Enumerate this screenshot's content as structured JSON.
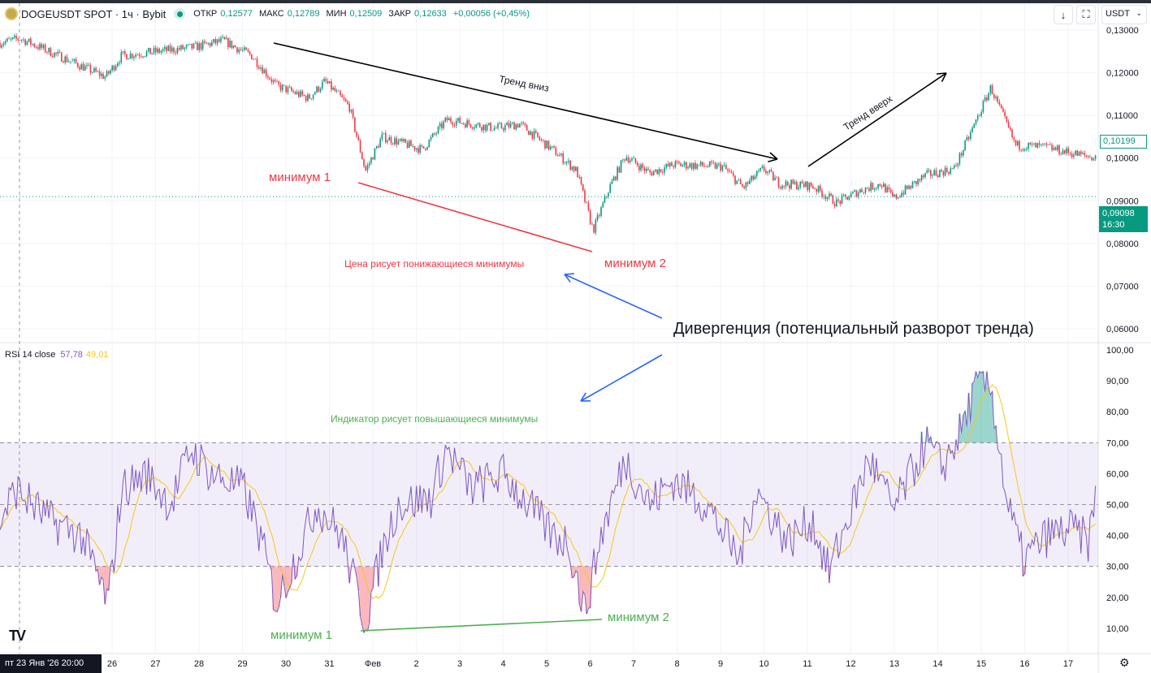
{
  "header": {
    "title": "DOGEUSDT SPOT · 1ч · Bybit",
    "open_label": "ОТКР",
    "open": "0,12577",
    "high_label": "МАКС",
    "high": "0,12789",
    "low_label": "МИН",
    "low": "0,12509",
    "close_label": "ЗАКР",
    "close": "0,12633",
    "change": "+0,00056 (+0,45%)",
    "currency": "USDT"
  },
  "rsi_legend": {
    "label": "RSI 14 close",
    "rsi": "57,78",
    "ma": "49,01"
  },
  "price_axis": [
    "0,13000",
    "0,12000",
    "0,11000",
    "0,10000",
    "0,09000",
    "0,08000",
    "0,07000",
    "0,06000"
  ],
  "rsi_axis": [
    "100,00",
    "90,00",
    "80,00",
    "70,00",
    "60,00",
    "50,00",
    "40,00",
    "30,00",
    "20,00",
    "10,00"
  ],
  "current_price": "0,10199",
  "last_price": "0,09098",
  "countdown": "16:30",
  "time_axis": {
    "cursor": "пт 23 Янв '26   20:00",
    "labels": [
      "26",
      "27",
      "28",
      "29",
      "30",
      "31",
      "Фев",
      "2",
      "3",
      "4",
      "5",
      "6",
      "7",
      "8",
      "9",
      "10",
      "11",
      "12",
      "13",
      "14",
      "15",
      "16",
      "17"
    ]
  },
  "annotations": {
    "trend_down": "Тренд вниз",
    "trend_up": "Тренд вверх",
    "min1_price": "минимум 1",
    "min2_price": "минимум 2",
    "price_note": "Цена рисует понижающиеся минимумы",
    "divergence": "Дивергенция (потенциальный разворот тренда)",
    "rsi_note": "Индикатор рисует повышающиеся минимумы",
    "min1_rsi": "минимум 1",
    "min2_rsi": "минимум 2"
  },
  "colors": {
    "up": "#089981",
    "down": "#f23645",
    "rsi": "#7e57c2",
    "rsi_ma": "#f7c61c",
    "band": "#7e57c2"
  },
  "chart_data": {
    "type": "candlestick+line",
    "x_unit": "days from 26 Jan",
    "price_path": [
      [
        -2.58,
        0.127
      ],
      [
        -2.11,
        0.128
      ],
      [
        -0.15,
        0.119
      ],
      [
        0.22,
        0.124
      ],
      [
        1.91,
        0.126
      ],
      [
        2.56,
        0.1275
      ],
      [
        3.21,
        0.124
      ],
      [
        3.78,
        0.117
      ],
      [
        4.52,
        0.114
      ],
      [
        4.9,
        0.118
      ],
      [
        5.46,
        0.112
      ],
      [
        5.83,
        0.097
      ],
      [
        6.21,
        0.105
      ],
      [
        7.14,
        0.102
      ],
      [
        7.7,
        0.109
      ],
      [
        8.82,
        0.107
      ],
      [
        9.38,
        0.108
      ],
      [
        10.13,
        0.102
      ],
      [
        10.69,
        0.097
      ],
      [
        11.07,
        0.083
      ],
      [
        11.44,
        0.093
      ],
      [
        11.81,
        0.1005
      ],
      [
        12.37,
        0.0965
      ],
      [
        12.93,
        0.0985
      ],
      [
        14.06,
        0.098
      ],
      [
        14.52,
        0.093
      ],
      [
        14.99,
        0.0975
      ],
      [
        15.36,
        0.094
      ],
      [
        16.11,
        0.0935
      ],
      [
        16.67,
        0.0895
      ],
      [
        17.23,
        0.0925
      ],
      [
        17.7,
        0.094
      ],
      [
        17.98,
        0.0905
      ],
      [
        18.73,
        0.096
      ],
      [
        19.38,
        0.0975
      ],
      [
        19.85,
        0.108
      ],
      [
        20.22,
        0.1165
      ],
      [
        20.79,
        0.103
      ],
      [
        21.53,
        0.1025
      ],
      [
        21.91,
        0.1015
      ],
      [
        22.65,
        0.1
      ]
    ],
    "rsi_path": [
      [
        -2.58,
        45
      ],
      [
        -2.21,
        55
      ],
      [
        -1.46,
        45
      ],
      [
        -0.71,
        40
      ],
      [
        -0.09,
        18
      ],
      [
        0.22,
        55
      ],
      [
        0.79,
        60
      ],
      [
        1.35,
        50
      ],
      [
        1.81,
        68
      ],
      [
        2.28,
        60
      ],
      [
        3.03,
        55
      ],
      [
        3.4,
        40
      ],
      [
        3.78,
        18
      ],
      [
        4.15,
        30
      ],
      [
        4.71,
        50
      ],
      [
        5.27,
        40
      ],
      [
        5.83,
        12
      ],
      [
        6.21,
        35
      ],
      [
        6.58,
        50
      ],
      [
        7.33,
        52
      ],
      [
        7.7,
        68
      ],
      [
        8.26,
        55
      ],
      [
        9.01,
        60
      ],
      [
        9.57,
        50
      ],
      [
        10.13,
        40
      ],
      [
        10.5,
        38
      ],
      [
        10.88,
        15
      ],
      [
        11.25,
        40
      ],
      [
        11.81,
        65
      ],
      [
        12.37,
        50
      ],
      [
        12.93,
        58
      ],
      [
        13.68,
        50
      ],
      [
        14.43,
        32
      ],
      [
        14.8,
        55
      ],
      [
        15.55,
        38
      ],
      [
        16.11,
        45
      ],
      [
        16.49,
        28
      ],
      [
        17.05,
        50
      ],
      [
        17.42,
        65
      ],
      [
        17.98,
        48
      ],
      [
        18.73,
        70
      ],
      [
        19.1,
        62
      ],
      [
        19.48,
        72
      ],
      [
        19.94,
        90
      ],
      [
        20.22,
        88
      ],
      [
        20.6,
        50
      ],
      [
        20.97,
        32
      ],
      [
        21.53,
        40
      ],
      [
        22.09,
        42
      ],
      [
        22.47,
        38
      ],
      [
        22.69,
        57
      ]
    ],
    "price_range": [
      0.06,
      0.13
    ],
    "rsi_range": [
      0,
      100
    ],
    "rsi_bands": [
      30,
      70
    ],
    "rsi_length": 14
  }
}
